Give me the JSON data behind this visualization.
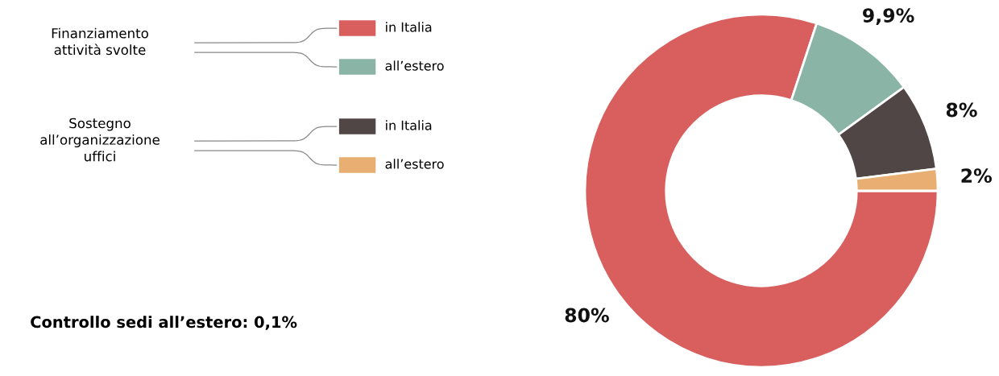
{
  "chart_data": {
    "type": "donut",
    "categories": [
      "in Italia",
      "all’estero",
      "in Italia",
      "all’estero"
    ],
    "values": [
      80,
      9.9,
      8,
      2
    ],
    "colors": [
      "#d95f5f",
      "#8ab5a6",
      "#504646",
      "#e8ae72"
    ],
    "value_labels": [
      "80%",
      "9,9%",
      "8%",
      "2%"
    ],
    "legend": "top left",
    "annotations": [
      "Finanziamento\nattività svolte",
      "Sostegno\nall’organizzazione\nuffici",
      "Controllo sedi all’estero: 0,1%"
    ]
  }
}
